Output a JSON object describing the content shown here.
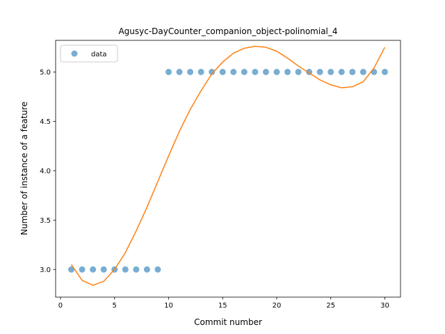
{
  "chart_data": {
    "type": "scatter",
    "title": "Agusyc-DayCounter_companion_object-polinomial_4",
    "xlabel": "Commit number",
    "ylabel": "Number of instance of a feature",
    "xlim": [
      -0.45,
      31.45
    ],
    "ylim": [
      2.72,
      5.32
    ],
    "xticks": [
      0,
      5,
      10,
      15,
      20,
      25,
      30
    ],
    "yticks": [
      3.0,
      3.5,
      4.0,
      4.5,
      5.0
    ],
    "ytick_labels": [
      "3.0",
      "3.5",
      "4.0",
      "4.5",
      "5.0"
    ],
    "grid": false,
    "legend": {
      "position": "upper-left",
      "entries": [
        "data"
      ]
    },
    "series": [
      {
        "name": "data",
        "kind": "scatter",
        "color": "#1f77b4",
        "x": [
          1,
          2,
          3,
          4,
          5,
          6,
          7,
          8,
          9,
          10,
          11,
          12,
          13,
          14,
          15,
          16,
          17,
          18,
          19,
          20,
          21,
          22,
          23,
          24,
          25,
          26,
          27,
          28,
          29,
          30
        ],
        "y": [
          3,
          3,
          3,
          3,
          3,
          3,
          3,
          3,
          3,
          5,
          5,
          5,
          5,
          5,
          5,
          5,
          5,
          5,
          5,
          5,
          5,
          5,
          5,
          5,
          5,
          5,
          5,
          5,
          5,
          5
        ]
      },
      {
        "kind": "line",
        "color": "#ff7f0e",
        "x": [
          1,
          2,
          3,
          4,
          5,
          6,
          7,
          8,
          9,
          10,
          11,
          12,
          13,
          14,
          15,
          16,
          17,
          18,
          19,
          20,
          21,
          22,
          23,
          24,
          25,
          26,
          27,
          28,
          29,
          30
        ],
        "y": [
          3.05,
          2.89,
          2.84,
          2.88,
          3.0,
          3.17,
          3.39,
          3.63,
          3.89,
          4.15,
          4.4,
          4.62,
          4.81,
          4.98,
          5.1,
          5.19,
          5.24,
          5.26,
          5.25,
          5.21,
          5.14,
          5.06,
          4.99,
          4.92,
          4.87,
          4.84,
          4.85,
          4.9,
          5.04,
          5.25
        ]
      }
    ]
  }
}
